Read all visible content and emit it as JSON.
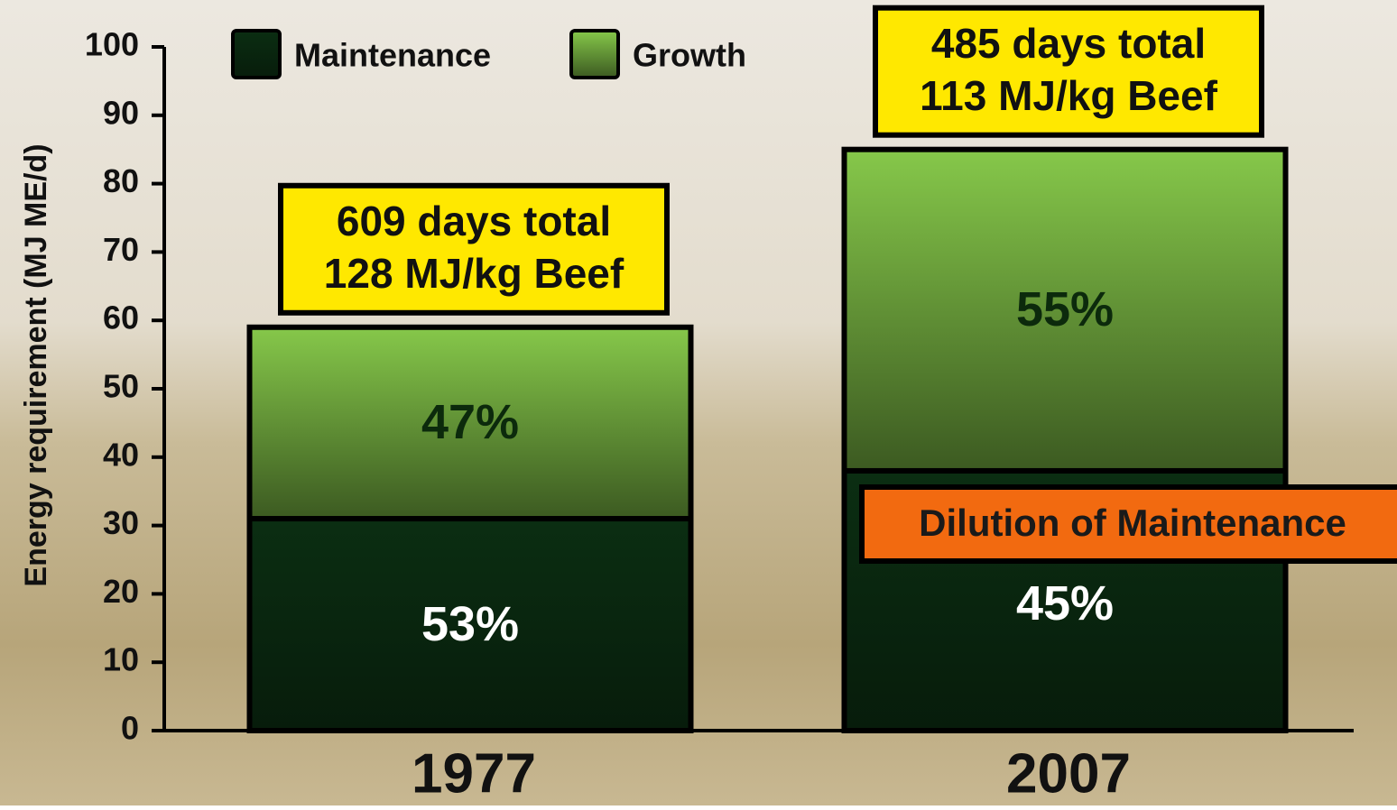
{
  "chart_data": {
    "type": "stacked_bar",
    "y_label": "Energy requirement (MJ ME/d)",
    "categories": [
      "1977",
      "2007"
    ],
    "series": [
      {
        "name": "Maintenance",
        "color": "#0b2e12",
        "values": [
          31,
          38
        ],
        "shares": [
          "53%",
          "45%"
        ]
      },
      {
        "name": "Growth",
        "color": "#86c84a",
        "values": [
          28,
          47
        ],
        "shares": [
          "47%",
          "55%"
        ]
      }
    ],
    "ylim": [
      0,
      100
    ],
    "yticks": [
      0,
      10,
      20,
      30,
      40,
      50,
      60,
      70,
      80,
      90,
      100
    ],
    "legend": "top",
    "annotations": [
      [
        "609 days total",
        "128 MJ/kg Beef"
      ],
      [
        "485 days total",
        "113 MJ/kg Beef"
      ]
    ],
    "callout": "Dilution of Maintenance"
  }
}
